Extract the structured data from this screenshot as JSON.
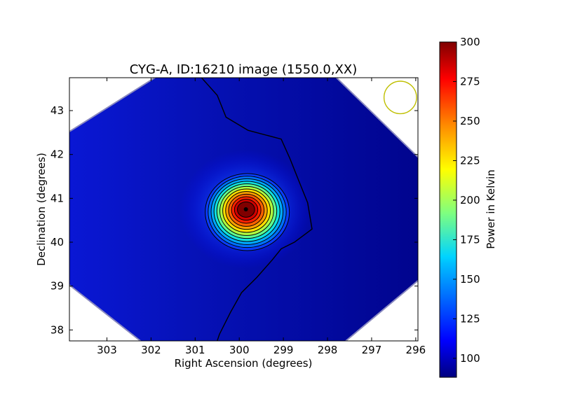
{
  "chart_data": {
    "type": "heatmap",
    "title": "CYG-A, ID:16210 image (1550.0,XX)",
    "xlabel": "Right Ascension (degrees)",
    "ylabel": "Declination (degrees)",
    "xlim": [
      303.85,
      295.95
    ],
    "ylim": [
      37.75,
      43.75
    ],
    "x_ticks": [
      303,
      302,
      301,
      300,
      299,
      298,
      297,
      296
    ],
    "x_tick_labels": [
      "303",
      "302",
      "301",
      "300",
      "299",
      "298",
      "297",
      "296"
    ],
    "y_ticks": [
      38,
      39,
      40,
      41,
      42,
      43
    ],
    "y_tick_labels": [
      "38",
      "39",
      "40",
      "41",
      "42",
      "43"
    ],
    "source": {
      "ra": 299.85,
      "dec": 40.75,
      "peak_kelvin": 300
    },
    "background_kelvin": 95,
    "beam_circle": {
      "ra": 296.35,
      "dec": 43.3,
      "radius_deg": 0.37,
      "color": "#bfbf00"
    },
    "grid": false,
    "colormap": "jet",
    "colorbar": {
      "label": "Power in Kelvin",
      "min": 88,
      "max": 300,
      "ticks": [
        100,
        125,
        150,
        175,
        200,
        225,
        250,
        275,
        300
      ],
      "tick_labels": [
        "100",
        "125",
        "150",
        "175",
        "200",
        "225",
        "250",
        "275",
        "300"
      ],
      "placement": "right"
    }
  }
}
